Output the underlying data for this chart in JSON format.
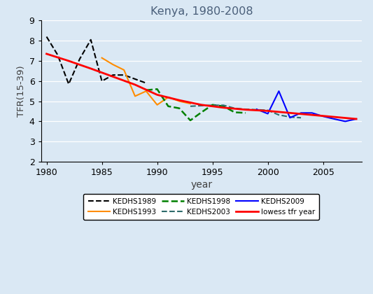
{
  "title": "Kenya, 1980-2008",
  "xlabel": "year",
  "ylabel": "TFR(15-39)",
  "xlim": [
    1979.5,
    2008.5
  ],
  "ylim": [
    2,
    9
  ],
  "yticks": [
    2,
    3,
    4,
    5,
    6,
    7,
    8,
    9
  ],
  "xticks": [
    1980,
    1985,
    1990,
    1995,
    2000,
    2005
  ],
  "background_color": "#dae8f4",
  "plot_bg_color": "#dae8f4",
  "kedhs1989": {
    "x": [
      1980,
      1981,
      1982,
      1983,
      1984,
      1985,
      1986,
      1987,
      1988,
      1989
    ],
    "y": [
      8.2,
      7.3,
      5.85,
      7.1,
      8.05,
      6.0,
      6.3,
      6.3,
      6.1,
      5.9
    ],
    "color": "black",
    "linestyle": "--",
    "linewidth": 1.5,
    "label": "KEDHS1989"
  },
  "kedhs1993": {
    "x": [
      1985,
      1986,
      1987,
      1988,
      1989,
      1990,
      1991,
      1992,
      1993
    ],
    "y": [
      7.15,
      6.82,
      6.55,
      5.25,
      5.5,
      4.82,
      5.2,
      5.0,
      4.88
    ],
    "color": "#FF8C00",
    "linestyle": "-",
    "linewidth": 1.5,
    "label": "KEDHS1993"
  },
  "kedhs1998": {
    "x": [
      1989,
      1990,
      1991,
      1992,
      1993,
      1994,
      1995,
      1996,
      1997,
      1998
    ],
    "y": [
      5.55,
      5.6,
      4.75,
      4.65,
      4.05,
      4.45,
      4.82,
      4.75,
      4.45,
      4.42
    ],
    "color": "green",
    "linestyle": "--",
    "linewidth": 1.8,
    "label": "KEDHS1998"
  },
  "kedhs2003": {
    "x": [
      1993,
      1994,
      1995,
      1996,
      1997,
      1998,
      1999,
      2000,
      2001,
      2002,
      2003
    ],
    "y": [
      4.75,
      4.78,
      4.8,
      4.8,
      4.65,
      4.6,
      4.58,
      4.55,
      4.32,
      4.22,
      4.18
    ],
    "color": "#2e6b6b",
    "linestyle": "--",
    "linewidth": 1.5,
    "label": "KEDHS2003"
  },
  "kedhs2009": {
    "x": [
      1999,
      2000,
      2001,
      2002,
      2003,
      2004,
      2005,
      2006,
      2007,
      2008
    ],
    "y": [
      4.6,
      4.38,
      5.5,
      4.18,
      4.42,
      4.42,
      4.25,
      4.12,
      4.0,
      4.12
    ],
    "color": "blue",
    "linestyle": "-",
    "linewidth": 1.5,
    "label": "KEDHS2009"
  },
  "lowess": {
    "x": [
      1980,
      1982,
      1984,
      1986,
      1988,
      1990,
      1992,
      1994,
      1996,
      1998,
      2000,
      2002,
      2004,
      2006,
      2008
    ],
    "y": [
      7.35,
      7.0,
      6.62,
      6.22,
      5.82,
      5.32,
      5.05,
      4.82,
      4.68,
      4.58,
      4.52,
      4.42,
      4.32,
      4.22,
      4.12
    ],
    "color": "red",
    "linestyle": "-",
    "linewidth": 2.0,
    "label": "lowess tfr year"
  },
  "legend_entries": [
    {
      "label": "KEDHS1989",
      "color": "black",
      "linestyle": "--",
      "linewidth": 1.5
    },
    {
      "label": "KEDHS1993",
      "color": "#FF8C00",
      "linestyle": "-",
      "linewidth": 1.5
    },
    {
      "label": "KEDHS1998",
      "color": "green",
      "linestyle": "--",
      "linewidth": 1.8
    },
    {
      "label": "KEDHS2003",
      "color": "#2e6b6b",
      "linestyle": "--",
      "linewidth": 1.5
    },
    {
      "label": "KEDHS2009",
      "color": "blue",
      "linestyle": "-",
      "linewidth": 1.5
    },
    {
      "label": "lowess tfr year",
      "color": "red",
      "linestyle": "-",
      "linewidth": 2.0
    }
  ]
}
